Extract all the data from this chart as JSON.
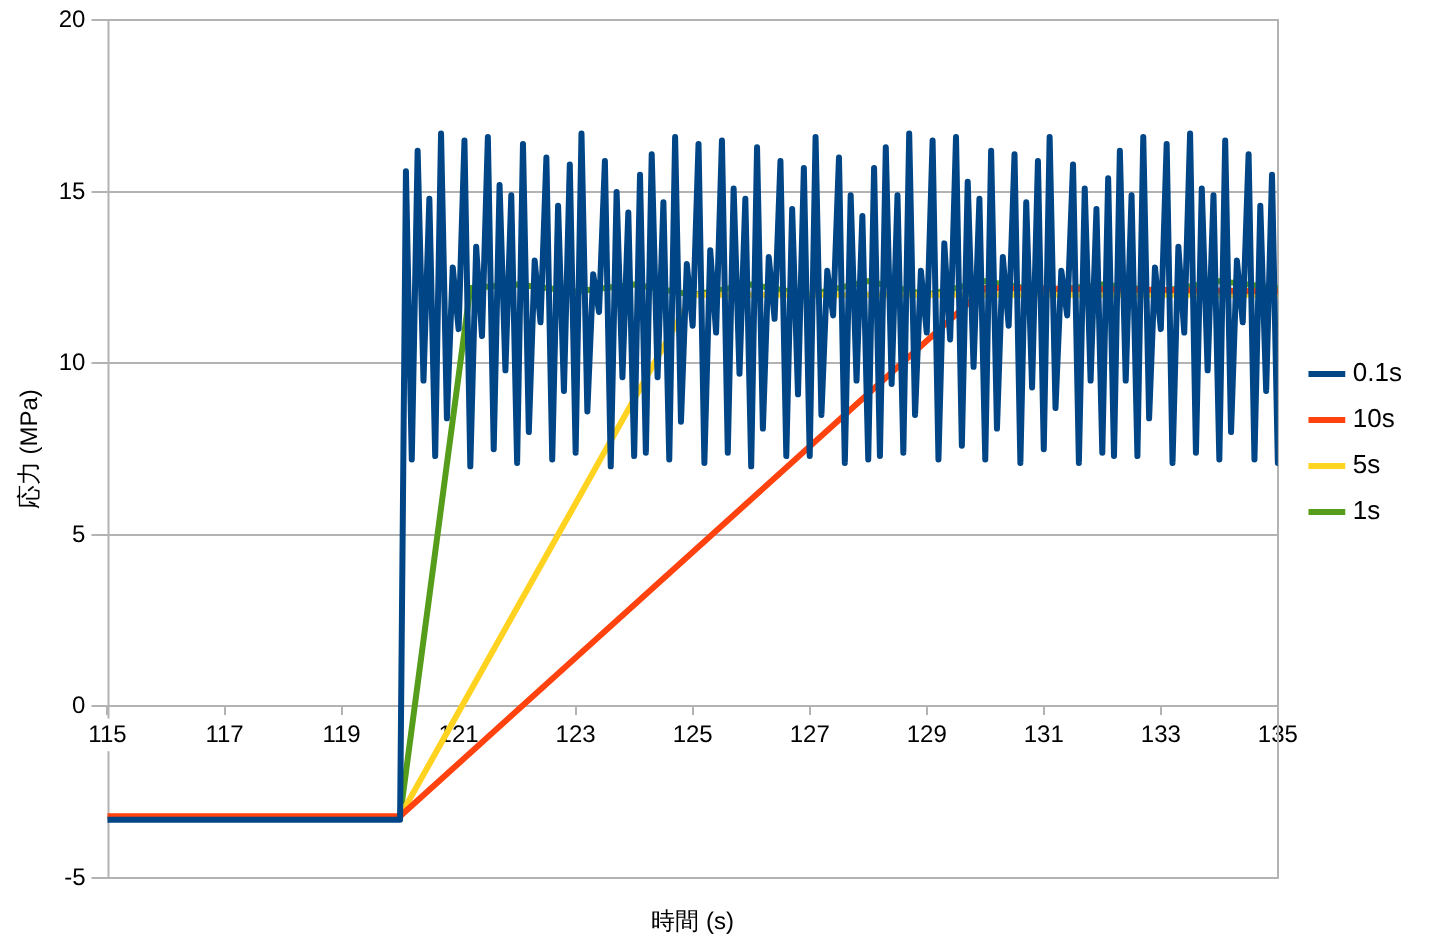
{
  "chart_data": {
    "type": "line",
    "xlabel": "時間 (s)",
    "ylabel": "応力 (MPa)",
    "xlim": [
      115,
      135
    ],
    "xticks": [
      115,
      117,
      119,
      121,
      123,
      125,
      127,
      129,
      131,
      133,
      135
    ],
    "ylim": [
      -5,
      20
    ],
    "yticks": [
      -5,
      0,
      5,
      10,
      15,
      20
    ],
    "grid": "y",
    "legend": "right",
    "marker": "none",
    "line_style": "solid",
    "series": [
      {
        "name": "0.1s",
        "color": "#004586",
        "x": [
          115,
          120,
          120.1,
          120.2,
          120.3,
          120.4,
          120.5,
          120.6,
          120.7,
          120.8,
          120.9,
          121,
          121.1,
          121.2,
          121.3,
          121.4,
          121.5,
          121.6,
          121.7,
          121.8,
          121.9,
          122,
          122.1,
          122.2,
          122.3,
          122.4,
          122.5,
          122.6,
          122.7,
          122.8,
          122.9,
          123,
          123.1,
          123.2,
          123.3,
          123.4,
          123.5,
          123.6,
          123.7,
          123.8,
          123.9,
          124,
          124.1,
          124.2,
          124.3,
          124.4,
          124.5,
          124.6,
          124.7,
          124.8,
          124.9,
          125,
          125.1,
          125.2,
          125.3,
          125.4,
          125.5,
          125.6,
          125.7,
          125.8,
          125.9,
          126,
          126.1,
          126.2,
          126.3,
          126.4,
          126.5,
          126.6,
          126.7,
          126.8,
          126.9,
          127,
          127.1,
          127.2,
          127.3,
          127.4,
          127.5,
          127.6,
          127.7,
          127.8,
          127.9,
          128,
          128.1,
          128.2,
          128.3,
          128.4,
          128.5,
          128.6,
          128.7,
          128.8,
          128.9,
          129,
          129.1,
          129.2,
          129.3,
          129.4,
          129.5,
          129.6,
          129.7,
          129.8,
          129.9,
          130,
          130.1,
          130.2,
          130.3,
          130.4,
          130.5,
          130.6,
          130.7,
          130.8,
          130.9,
          131,
          131.1,
          131.2,
          131.3,
          131.4,
          131.5,
          131.6,
          131.7,
          131.8,
          131.9,
          132,
          132.1,
          132.2,
          132.3,
          132.4,
          132.5,
          132.6,
          132.7,
          132.8,
          132.9,
          133,
          133.1,
          133.2,
          133.3,
          133.4,
          133.5,
          133.6,
          133.7,
          133.8,
          133.9,
          134,
          134.1,
          134.2,
          134.3,
          134.4,
          134.5,
          134.6,
          134.7,
          134.8,
          134.9,
          135
        ],
        "values": [
          -3.3,
          -3.3,
          15.6,
          7.2,
          16.2,
          9.5,
          14.8,
          7.3,
          16.7,
          8.4,
          12.8,
          11.0,
          16.5,
          7.0,
          13.4,
          10.8,
          16.6,
          7.5,
          15.2,
          9.8,
          14.9,
          7.1,
          16.4,
          8.0,
          13.0,
          11.2,
          16.0,
          7.2,
          14.6,
          9.2,
          15.8,
          7.4,
          16.7,
          8.6,
          12.6,
          11.5,
          15.9,
          7.0,
          15.0,
          9.6,
          14.4,
          7.3,
          15.5,
          7.4,
          16.1,
          9.6,
          14.7,
          7.2,
          16.6,
          8.3,
          12.9,
          11.1,
          16.4,
          7.1,
          13.3,
          10.9,
          16.5,
          7.4,
          15.1,
          9.7,
          14.8,
          7.0,
          16.3,
          8.1,
          13.1,
          11.3,
          15.9,
          7.3,
          14.5,
          9.1,
          15.7,
          7.3,
          16.6,
          8.5,
          12.7,
          11.4,
          16.0,
          7.1,
          14.9,
          9.5,
          14.3,
          7.2,
          15.7,
          7.3,
          16.3,
          9.4,
          14.9,
          7.4,
          16.7,
          8.5,
          12.7,
          10.9,
          16.5,
          7.2,
          13.5,
          10.7,
          16.6,
          7.6,
          15.3,
          9.9,
          14.8,
          7.2,
          16.2,
          8.1,
          13.1,
          11.1,
          16.1,
          7.1,
          14.7,
          9.3,
          15.9,
          7.5,
          16.6,
          8.7,
          12.7,
          11.4,
          15.8,
          7.1,
          15.1,
          9.5,
          14.5,
          7.4,
          15.4,
          7.3,
          16.2,
          9.5,
          14.9,
          7.3,
          16.6,
          8.4,
          12.8,
          11.0,
          16.4,
          7.1,
          13.4,
          10.9,
          16.7,
          7.4,
          15.1,
          9.8,
          14.9,
          7.2,
          16.5,
          8.0,
          13.0,
          11.2,
          16.1,
          7.2,
          14.6,
          9.2,
          15.5,
          7.1
        ]
      },
      {
        "name": "10s",
        "color": "#ff420e",
        "x": [
          115,
          120,
          130,
          135
        ],
        "values": [
          -3.2,
          -3.2,
          12.2,
          12.1
        ]
      },
      {
        "name": "5s",
        "color": "#ffd320",
        "x": [
          120,
          125,
          135
        ],
        "values": [
          -3.2,
          12.0,
          12.0
        ]
      },
      {
        "name": "1s",
        "color": "#579d1c",
        "x": [
          120,
          121.2,
          122,
          123,
          124,
          125,
          126,
          127,
          128,
          129,
          130,
          131,
          132,
          133,
          134,
          135
        ],
        "values": [
          -3.2,
          12.2,
          12.3,
          12.1,
          12.3,
          12.0,
          12.3,
          12.0,
          12.4,
          12.0,
          12.4,
          12.1,
          12.3,
          12.1,
          12.4,
          12.2
        ]
      }
    ]
  }
}
